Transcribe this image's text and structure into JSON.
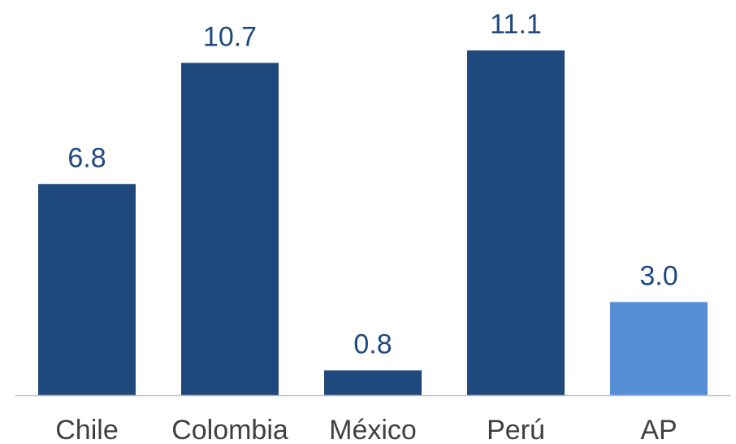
{
  "chart_data": {
    "type": "bar",
    "categories": [
      "Chile",
      "Colombia",
      "México",
      "Perú",
      "AP"
    ],
    "values": [
      6.8,
      10.7,
      0.8,
      11.1,
      3.0
    ],
    "value_labels": [
      "6.8",
      "10.7",
      "0.8",
      "11.1",
      "3.0"
    ],
    "title": "",
    "xlabel": "",
    "ylabel": "",
    "ylim": [
      0,
      11.1
    ],
    "grid": false,
    "legend": "none",
    "highlight_category": "AP"
  },
  "colors": {
    "bar": "#1f497d",
    "highlight_bar": "#558ed5",
    "value_label": "#1f497d",
    "category_label": "#404040",
    "axis_line": "#bfbfbf"
  }
}
